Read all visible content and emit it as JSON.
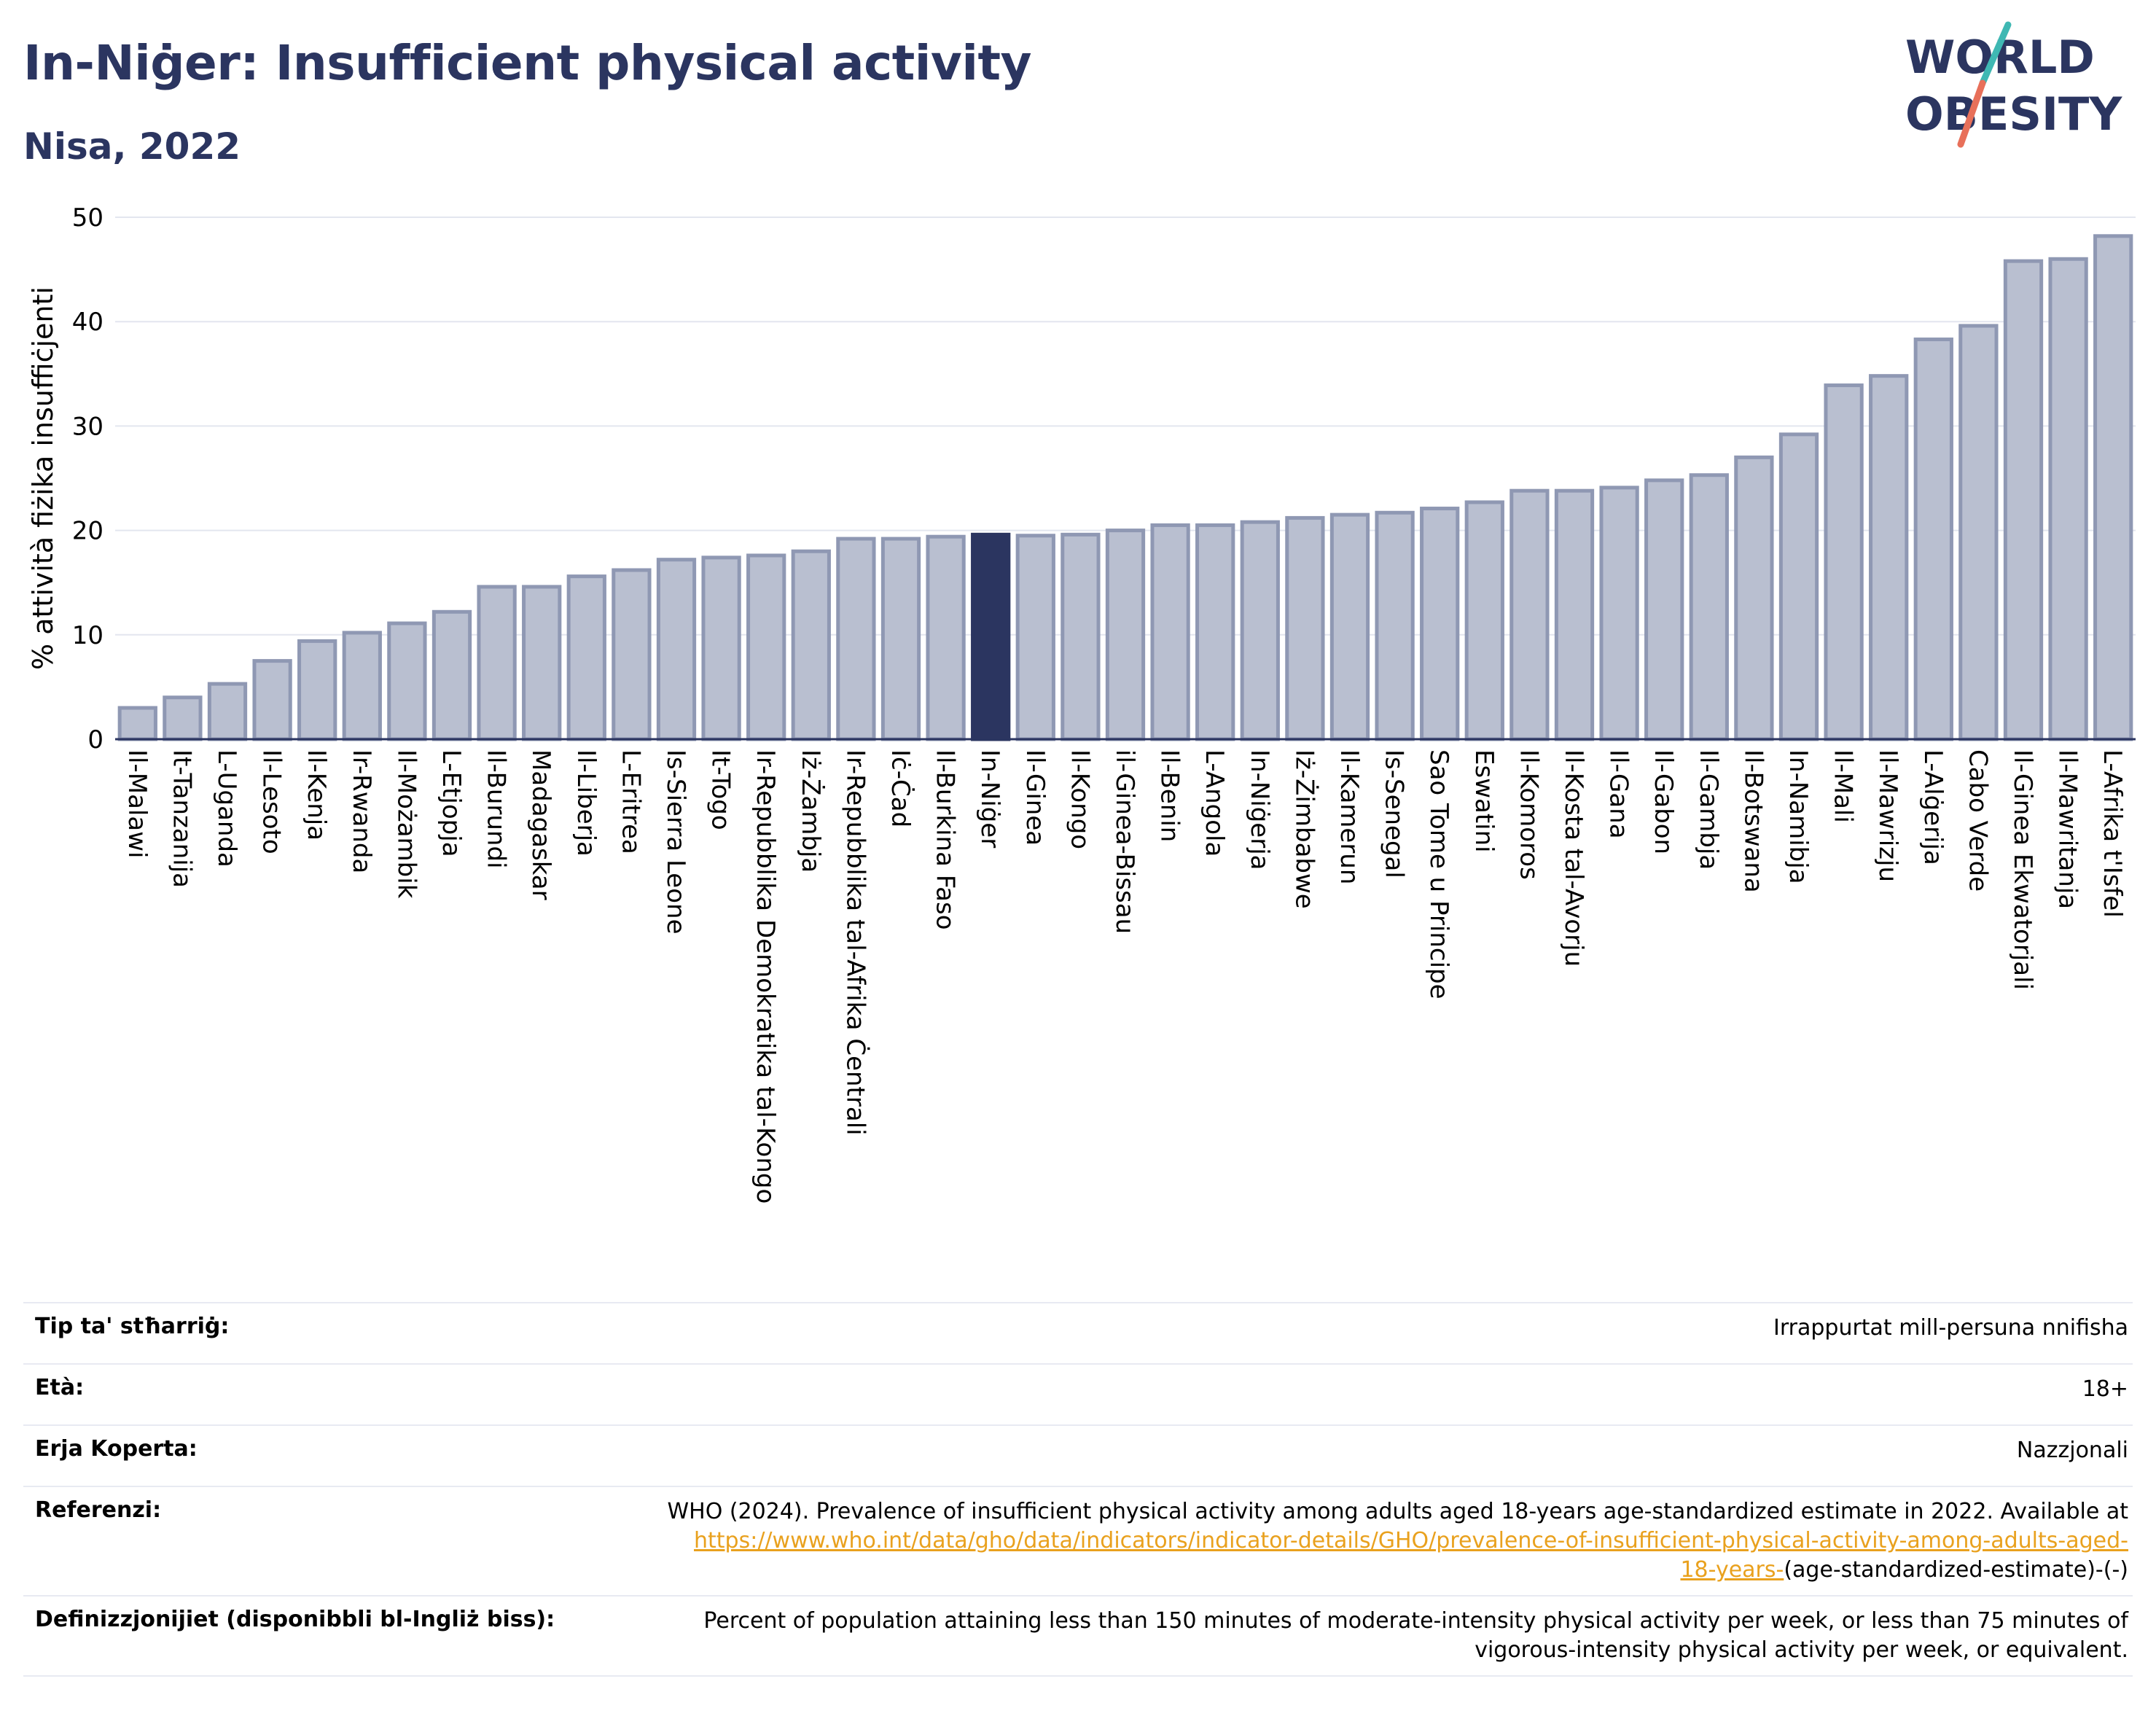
{
  "header": {
    "title": "In-Niġer: Insufficient physical activity",
    "subtitle": "Nisa, 2022"
  },
  "logo": {
    "line1": "WORLD",
    "line2": "OBESITY"
  },
  "colors": {
    "bar": "#b9bfd0",
    "bar_stroke": "#8f98b3",
    "highlight": "#2b3560",
    "title": "#2b3560",
    "link": "#e9a11e"
  },
  "chart_data": {
    "type": "bar",
    "ylabel": "% attività fiżika insuffiċjenti",
    "ylim": [
      0,
      50
    ],
    "yticks": [
      0,
      10,
      20,
      30,
      40,
      50
    ],
    "grid": true,
    "highlight": "In-Niġer",
    "categories": [
      "Il-Malawi",
      "It-Tanzanija",
      "L-Uganda",
      "Il-Lesoto",
      "Il-Kenja",
      "Ir-Rwanda",
      "Il-Możambik",
      "L-Etjopja",
      "Il-Burundi",
      "Madagaskar",
      "Il-Liberja",
      "L-Eritrea",
      "Is-Sierra Leone",
      "It-Togo",
      "Ir-Repubblika Demokratika tal-Kongo",
      "Iż-Żambja",
      "Ir-Repubblika tal-Afrika Ċentrali",
      "Iċ-Ċad",
      "Il-Burkina Faso",
      "In-Niġer",
      "Il-Ginea",
      "Il-Kongo",
      "il-Ginea-Bissau",
      "Il-Benin",
      "L-Angola",
      "In-Niġerja",
      "Iż-Żimbabwe",
      "Il-Kamerun",
      "Is-Senegal",
      "Sao Tome u Principe",
      "Eswatini",
      "Il-Komoros",
      "Il-Kosta tal-Avorju",
      "Il-Gana",
      "Il-Gabon",
      "Il-Gambja",
      "Il-Botswana",
      "In-Namibja",
      "Il-Mali",
      "Il-Mawrizju",
      "L-Alġerija",
      "Cabo Verde",
      "Il-Ginea Ekwatorjali",
      "Il-Mawritanja",
      "L-Afrika t'Isfel"
    ],
    "values": [
      3.0,
      4.0,
      5.3,
      7.5,
      9.4,
      10.2,
      11.1,
      12.2,
      14.6,
      14.6,
      15.6,
      16.2,
      17.2,
      17.4,
      17.6,
      18.0,
      19.2,
      19.2,
      19.4,
      19.6,
      19.5,
      19.6,
      20.0,
      20.5,
      20.5,
      20.8,
      21.2,
      21.5,
      21.7,
      22.1,
      22.7,
      23.8,
      23.8,
      24.1,
      24.8,
      25.3,
      27.0,
      29.2,
      33.9,
      34.8,
      38.3,
      39.6,
      45.8,
      46.0,
      48.2
    ]
  },
  "info": {
    "rows": [
      {
        "label": "Tip ta' stħarriġ:",
        "value": "Irrappurtat mill-persuna nnifisha"
      },
      {
        "label": "Età:",
        "value": "18+"
      },
      {
        "label": "Erja Koperta:",
        "value": "Nazzjonali"
      }
    ],
    "reference": {
      "label": "Referenzi:",
      "text": "WHO (2024). Prevalence of insufficient physical activity among adults aged 18-years age-standardized estimate in 2022. Available at",
      "link_line1": "https://www.who.int/data/gho/data/indicators/indicator-details/GHO/prevalence-of-insufficient-physical-activity-among-adults-aged-",
      "link_line2": "18-years-",
      "tail": "(age-standardized-estimate)-(-)"
    },
    "definition": {
      "label": "Definizzjonijiet (disponibbli bl-Ingliż biss):",
      "line1": "Percent of population attaining less than 150 minutes of moderate-intensity physical activity per week, or less than 75 minutes of",
      "line2": "vigorous-intensity physical activity per week, or equivalent."
    }
  }
}
